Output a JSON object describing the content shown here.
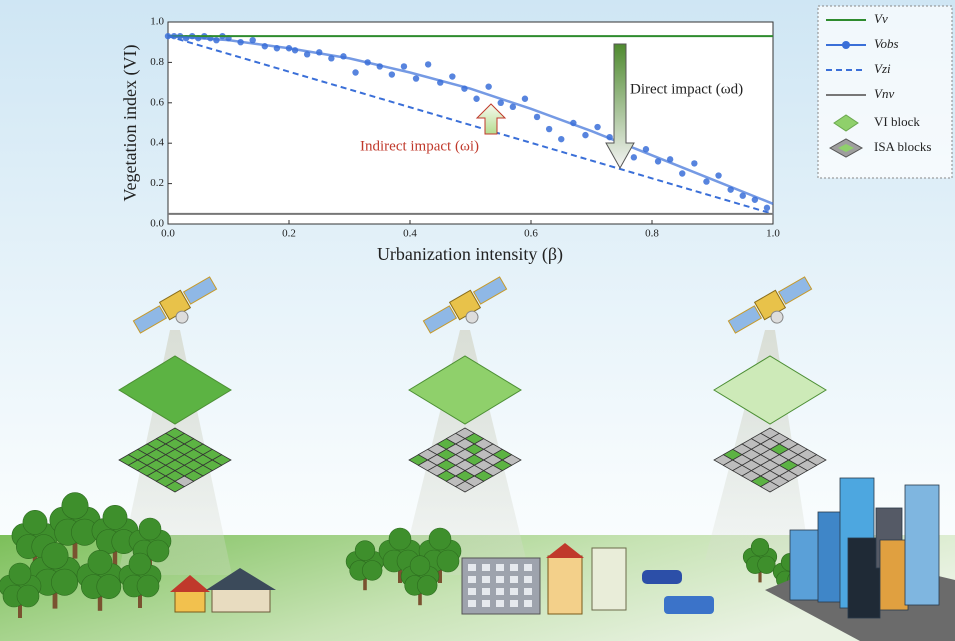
{
  "chart_data": {
    "type": "line",
    "x_label": "Urbanization intensity (β)",
    "y_label": "Vegetation index (VI)",
    "xlim": [
      0,
      1
    ],
    "ylim": [
      0,
      1
    ],
    "xticks": [
      {
        "value": 0,
        "label": "0.0"
      },
      {
        "value": 0.2,
        "label": "0.2"
      },
      {
        "value": 0.4,
        "label": "0.4"
      },
      {
        "value": 0.6,
        "label": "0.6"
      },
      {
        "value": 0.8,
        "label": "0.8"
      },
      {
        "value": 1,
        "label": "1.0"
      }
    ],
    "yticks": [
      {
        "value": 0,
        "label": "0.0"
      },
      {
        "value": 0.2,
        "label": "0.2"
      },
      {
        "value": 0.4,
        "label": "0.4"
      },
      {
        "value": 0.6,
        "label": "0.6"
      },
      {
        "value": 0.8,
        "label": "0.8"
      },
      {
        "value": 1,
        "label": "1.0"
      }
    ],
    "grid": false,
    "legend_position": "outside-right",
    "series": [
      {
        "name": "Vv",
        "color": "#2e8b2e",
        "style": "solid",
        "x": [
          0,
          1
        ],
        "values": [
          0.93,
          0.93
        ]
      },
      {
        "name": "Vobs",
        "color": "#3a6fd8",
        "style": "solid",
        "x": [
          0,
          0.1,
          0.2,
          0.3,
          0.4,
          0.5,
          0.6,
          0.7,
          0.8,
          0.9,
          1
        ],
        "values": [
          0.93,
          0.91,
          0.87,
          0.82,
          0.75,
          0.67,
          0.57,
          0.46,
          0.34,
          0.22,
          0.1
        ],
        "scatter": {
          "x": [
            0,
            0.01,
            0.02,
            0.03,
            0.04,
            0.05,
            0.06,
            0.07,
            0.08,
            0.09,
            0.1,
            0.12,
            0.14,
            0.16,
            0.18,
            0.2,
            0.21,
            0.23,
            0.25,
            0.27,
            0.29,
            0.31,
            0.33,
            0.35,
            0.37,
            0.39,
            0.41,
            0.43,
            0.45,
            0.47,
            0.49,
            0.51,
            0.53,
            0.55,
            0.57,
            0.59,
            0.61,
            0.63,
            0.65,
            0.67,
            0.69,
            0.71,
            0.73,
            0.75,
            0.77,
            0.79,
            0.81,
            0.83,
            0.85,
            0.87,
            0.89,
            0.91,
            0.93,
            0.95,
            0.97,
            0.99
          ],
          "values": [
            0.93,
            0.93,
            0.93,
            0.92,
            0.93,
            0.92,
            0.93,
            0.92,
            0.91,
            0.93,
            0.92,
            0.9,
            0.91,
            0.88,
            0.87,
            0.87,
            0.86,
            0.84,
            0.85,
            0.82,
            0.83,
            0.75,
            0.8,
            0.78,
            0.74,
            0.78,
            0.72,
            0.79,
            0.7,
            0.73,
            0.67,
            0.62,
            0.68,
            0.6,
            0.58,
            0.62,
            0.53,
            0.47,
            0.42,
            0.5,
            0.44,
            0.48,
            0.43,
            0.38,
            0.33,
            0.37,
            0.31,
            0.32,
            0.25,
            0.3,
            0.21,
            0.24,
            0.17,
            0.14,
            0.12,
            0.08
          ]
        }
      },
      {
        "name": "Vzi",
        "color": "#3a6fd8",
        "style": "dashed",
        "x": [
          0,
          1
        ],
        "values": [
          0.93,
          0.05
        ]
      },
      {
        "name": "Vnv",
        "color": "#777777",
        "style": "solid",
        "x": [
          0,
          1
        ],
        "values": [
          0.05,
          0.05
        ]
      }
    ],
    "annotations": {
      "direct": "Direct impact (ωd)",
      "indirect": "Indirect impact (ωi)"
    },
    "block_legend": [
      {
        "name": "VI block",
        "color": "#8fd06b"
      },
      {
        "name": "ISA blocks",
        "color": "#9e9e9e"
      }
    ]
  }
}
